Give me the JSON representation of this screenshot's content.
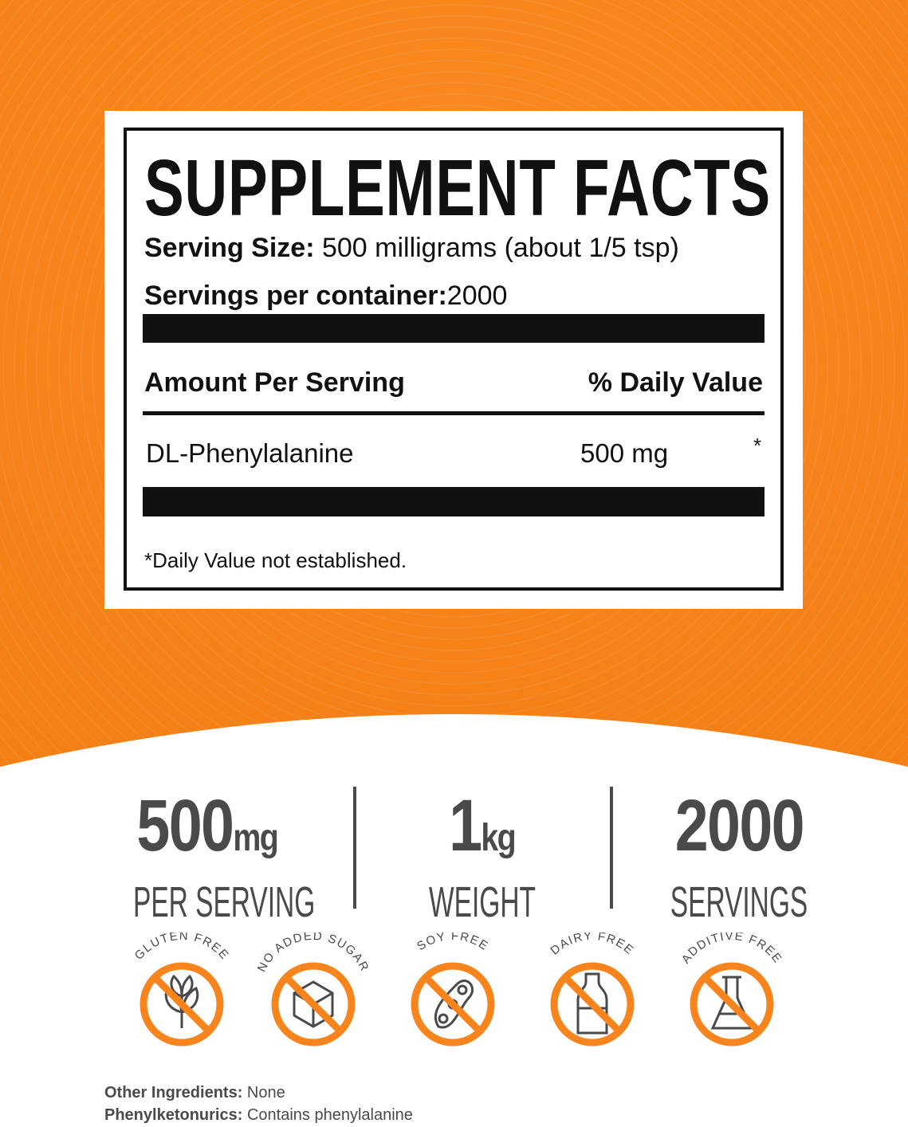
{
  "colors": {
    "brand_orange": "#F7841C",
    "text_dark": "#111111",
    "stat_gray": "#4A4A4A"
  },
  "facts": {
    "title": "SUPPLEMENT FACTS",
    "serving_size_label": "Serving Size:",
    "serving_size_value": "500 milligrams (about 1/5 tsp)",
    "servings_label": "Servings per container:",
    "servings_value": "2000",
    "col_amount": "Amount Per Serving",
    "col_dv": "% Daily Value",
    "ingredients": [
      {
        "name": "DL-Phenylalanine",
        "amount": "500 mg",
        "dv": "*"
      }
    ],
    "footnote": "*Daily Value not established."
  },
  "stats": [
    {
      "value": "500",
      "unit": "mg",
      "label": "PER SERVING"
    },
    {
      "value": "1",
      "unit": "kg",
      "label": "WEIGHT"
    },
    {
      "value": "2000",
      "unit": "",
      "label": "SERVINGS"
    }
  ],
  "badges": [
    {
      "label": "GLUTEN FREE",
      "icon": "wheat-icon"
    },
    {
      "label": "NO ADDED SUGAR",
      "icon": "sugar-cube-icon"
    },
    {
      "label": "SOY FREE",
      "icon": "soybean-icon"
    },
    {
      "label": "DAIRY FREE",
      "icon": "milk-bottle-icon"
    },
    {
      "label": "ADDITIVE FREE",
      "icon": "flask-icon"
    }
  ],
  "footer": {
    "other_label": "Other Ingredients:",
    "other_value": "None",
    "pku_label": "Phenylketonurics:",
    "pku_value": "Contains phenylalanine"
  }
}
